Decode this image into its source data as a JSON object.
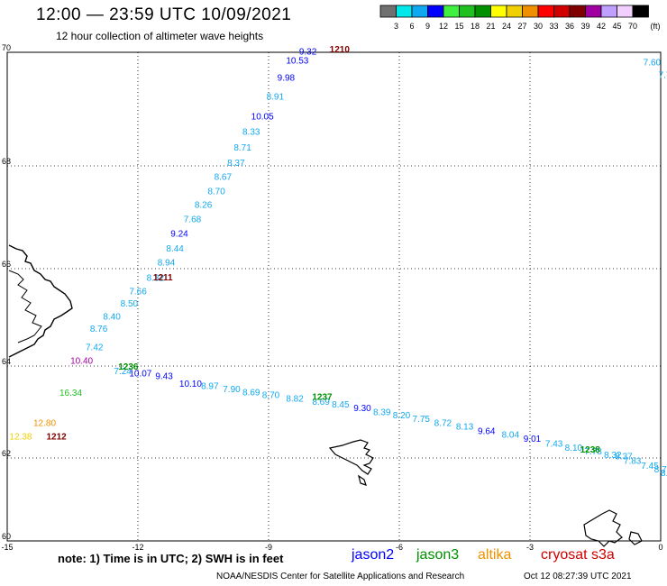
{
  "header": {
    "title": "12:00 — 23:59 UTC 10/09/2021",
    "subtitle": "12 hour collection of altimeter wave heights"
  },
  "legend": {
    "unit": "(ft)",
    "swatches": [
      {
        "label": "3",
        "color": "#707070"
      },
      {
        "label": "6",
        "color": "#00e8e8"
      },
      {
        "label": "9",
        "color": "#10a8f0"
      },
      {
        "label": "12",
        "color": "#0000ff"
      },
      {
        "label": "15",
        "color": "#40f040"
      },
      {
        "label": "18",
        "color": "#20c020"
      },
      {
        "label": "21",
        "color": "#009000"
      },
      {
        "label": "24",
        "color": "#ffff00"
      },
      {
        "label": "27",
        "color": "#f0d000"
      },
      {
        "label": "30",
        "color": "#f09000"
      },
      {
        "label": "33",
        "color": "#ff0000"
      },
      {
        "label": "36",
        "color": "#d00000"
      },
      {
        "label": "39",
        "color": "#800000"
      },
      {
        "label": "42",
        "color": "#a000a0"
      },
      {
        "label": "45",
        "color": "#c0a0ff"
      },
      {
        "label": "70",
        "color": "#f0d0ff"
      },
      {
        "label": "",
        "color": "#000000"
      }
    ]
  },
  "map": {
    "lon_range": [
      -15,
      0
    ],
    "lat_range": [
      60,
      70
    ],
    "lon_ticks": [
      {
        "value": -15,
        "label": "-15"
      },
      {
        "value": -12,
        "label": "-12"
      },
      {
        "value": -9,
        "label": "-9"
      },
      {
        "value": -6,
        "label": "-6"
      },
      {
        "value": -3,
        "label": "-3"
      },
      {
        "value": 0,
        "label": "0"
      }
    ],
    "lat_ticks": [
      {
        "value": 60,
        "label": "60"
      },
      {
        "value": 62,
        "label": "62"
      },
      {
        "value": 64,
        "label": "64"
      },
      {
        "value": 66,
        "label": "66"
      },
      {
        "value": 68,
        "label": "68"
      },
      {
        "value": 70,
        "label": "70"
      }
    ],
    "grid": true,
    "track1": [
      {
        "lon": -8.3,
        "lat": 69.96,
        "text": "9.32",
        "color": "#0000ff"
      },
      {
        "lon": -8.6,
        "lat": 69.8,
        "text": "10.53",
        "color": "#0000ff"
      },
      {
        "lon": -8.8,
        "lat": 69.5,
        "text": "9.98",
        "color": "#0000ff"
      },
      {
        "lon": -9.05,
        "lat": 69.17,
        "text": "8.91",
        "color": "#10a8f0"
      },
      {
        "lon": -9.4,
        "lat": 68.82,
        "text": "10.05",
        "color": "#0000ff"
      },
      {
        "lon": -9.6,
        "lat": 68.55,
        "text": "8.33",
        "color": "#10a8f0"
      },
      {
        "lon": -9.8,
        "lat": 68.27,
        "text": "8.71",
        "color": "#10a8f0"
      },
      {
        "lon": -9.95,
        "lat": 68.0,
        "text": "8.37",
        "color": "#10a8f0"
      },
      {
        "lon": -10.25,
        "lat": 67.73,
        "text": "8.67",
        "color": "#10a8f0"
      },
      {
        "lon": -10.4,
        "lat": 67.45,
        "text": "8.70",
        "color": "#10a8f0"
      },
      {
        "lon": -10.7,
        "lat": 67.18,
        "text": "8.26",
        "color": "#10a8f0"
      },
      {
        "lon": -10.95,
        "lat": 66.9,
        "text": "7.68",
        "color": "#10a8f0"
      },
      {
        "lon": -11.25,
        "lat": 66.62,
        "text": "9.24",
        "color": "#0000ff"
      },
      {
        "lon": -11.35,
        "lat": 66.33,
        "text": "8.44",
        "color": "#10a8f0"
      },
      {
        "lon": -11.55,
        "lat": 66.06,
        "text": "8.94",
        "color": "#10a8f0"
      },
      {
        "lon": -11.8,
        "lat": 65.75,
        "text": "8.32",
        "color": "#10a8f0"
      },
      {
        "lon": -12.2,
        "lat": 65.47,
        "text": "7.66",
        "color": "#10a8f0"
      },
      {
        "lon": -12.4,
        "lat": 65.22,
        "text": "8.50",
        "color": "#10a8f0"
      },
      {
        "lon": -12.8,
        "lat": 64.95,
        "text": "8.40",
        "color": "#10a8f0"
      },
      {
        "lon": -13.1,
        "lat": 64.7,
        "text": "8.76",
        "color": "#10a8f0"
      },
      {
        "lon": -13.2,
        "lat": 64.32,
        "text": "7.42",
        "color": "#10a8f0"
      },
      {
        "lon": -13.55,
        "lat": 64.05,
        "text": "10.40",
        "color": "#a000a0"
      },
      {
        "lon": -13.8,
        "lat": 63.35,
        "text": "16.34",
        "color": "#20c020"
      },
      {
        "lon": -14.4,
        "lat": 62.7,
        "text": "12.80",
        "color": "#f09000"
      },
      {
        "lon": -14.95,
        "lat": 62.4,
        "text": "12.38",
        "color": "#f0d000"
      }
    ],
    "track2": [
      {
        "lon": -12.55,
        "lat": 63.82,
        "text": "7.24",
        "color": "#10a8f0"
      },
      {
        "lon": -12.2,
        "lat": 63.77,
        "text": "10.07",
        "color": "#0000ff"
      },
      {
        "lon": -11.6,
        "lat": 63.72,
        "text": "9.43",
        "color": "#0000ff"
      },
      {
        "lon": -11.05,
        "lat": 63.55,
        "text": "10.10",
        "color": "#0000ff"
      },
      {
        "lon": -10.55,
        "lat": 63.5,
        "text": "8.97",
        "color": "#10a8f0"
      },
      {
        "lon": -10.05,
        "lat": 63.43,
        "text": "7.90",
        "color": "#10a8f0"
      },
      {
        "lon": -9.6,
        "lat": 63.36,
        "text": "8.69",
        "color": "#10a8f0"
      },
      {
        "lon": -9.15,
        "lat": 63.3,
        "text": "8.70",
        "color": "#10a8f0"
      },
      {
        "lon": -8.6,
        "lat": 63.23,
        "text": "8.82",
        "color": "#10a8f0"
      },
      {
        "lon": -8.0,
        "lat": 63.16,
        "text": "8.69",
        "color": "#10a8f0"
      },
      {
        "lon": -7.55,
        "lat": 63.1,
        "text": "8.45",
        "color": "#10a8f0"
      },
      {
        "lon": -7.05,
        "lat": 63.02,
        "text": "9.30",
        "color": "#0000ff"
      },
      {
        "lon": -6.6,
        "lat": 62.93,
        "text": "8.39",
        "color": "#10a8f0"
      },
      {
        "lon": -6.15,
        "lat": 62.86,
        "text": "8.20",
        "color": "#10a8f0"
      },
      {
        "lon": -5.7,
        "lat": 62.78,
        "text": "7.75",
        "color": "#10a8f0"
      },
      {
        "lon": -5.2,
        "lat": 62.7,
        "text": "8.72",
        "color": "#10a8f0"
      },
      {
        "lon": -4.7,
        "lat": 62.62,
        "text": "8.13",
        "color": "#10a8f0"
      },
      {
        "lon": -4.2,
        "lat": 62.52,
        "text": "9.64",
        "color": "#0000ff"
      },
      {
        "lon": -3.65,
        "lat": 62.44,
        "text": "8.04",
        "color": "#10a8f0"
      },
      {
        "lon": -3.15,
        "lat": 62.35,
        "text": "9.01",
        "color": "#0000ff"
      },
      {
        "lon": -2.65,
        "lat": 62.25,
        "text": "7.43",
        "color": "#10a8f0"
      },
      {
        "lon": -2.2,
        "lat": 62.16,
        "text": "8.10",
        "color": "#10a8f0"
      },
      {
        "lon": -1.75,
        "lat": 62.08,
        "text": "7.78",
        "color": "#10a8f0"
      },
      {
        "lon": -1.3,
        "lat": 62.0,
        "text": "8.32",
        "color": "#10a8f0"
      },
      {
        "lon": -1.05,
        "lat": 61.97,
        "text": "8.37",
        "color": "#10a8f0"
      },
      {
        "lon": -0.85,
        "lat": 61.86,
        "text": "7.83",
        "color": "#10a8f0"
      },
      {
        "lon": -0.45,
        "lat": 61.74,
        "text": "7.45",
        "color": "#10a8f0"
      },
      {
        "lon": -0.15,
        "lat": 61.65,
        "text": "8.70",
        "color": "#10a8f0"
      },
      {
        "lon": 0.0,
        "lat": 61.57,
        "text": "8.",
        "color": "#10a8f0"
      }
    ],
    "track3": [
      {
        "lon": -0.4,
        "lat": 69.77,
        "text": "7.60",
        "color": "#10a8f0"
      },
      {
        "lon": -0.05,
        "lat": 69.55,
        "text": "7.7",
        "color": "#10a8f0"
      }
    ],
    "time_labels": [
      {
        "lon": -7.6,
        "lat": 70.0,
        "text": "1210",
        "color": "#800000"
      },
      {
        "lon": -11.65,
        "lat": 65.76,
        "text": "1211",
        "color": "#800000"
      },
      {
        "lon": -14.1,
        "lat": 62.4,
        "text": "1212",
        "color": "#800000"
      },
      {
        "lon": -12.45,
        "lat": 63.92,
        "text": "1236",
        "color": "#009000"
      },
      {
        "lon": -8.0,
        "lat": 63.26,
        "text": "1237",
        "color": "#009000"
      },
      {
        "lon": -1.85,
        "lat": 62.12,
        "text": "1238",
        "color": "#009000"
      }
    ]
  },
  "footer": {
    "note": "note:  1) Time is in UTC;  2) SWH is in feet",
    "satellites": [
      {
        "name": "jason2",
        "color": "#0000ff"
      },
      {
        "name": "jason3",
        "color": "#009000"
      },
      {
        "name": "altika",
        "color": "#f09000"
      },
      {
        "name": "cryosat s3a",
        "color": "#d00000"
      }
    ],
    "credit": "NOAA/NESDIS Center for Satellite Applications and Research",
    "timestamp": "Oct 12 08:27:39 UTC 2021"
  }
}
